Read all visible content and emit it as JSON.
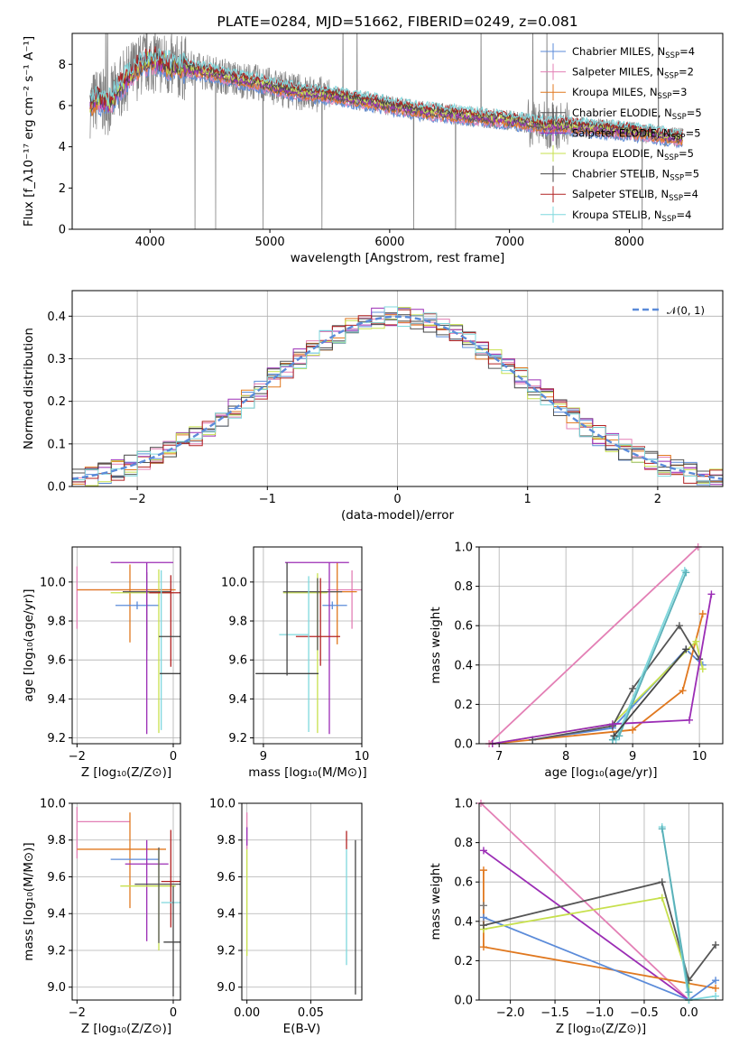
{
  "colors": {
    "chabrier_miles": "#5B8BD9",
    "salpeter_miles": "#E37FB5",
    "kroupa_miles": "#E0781F",
    "chabrier_elodie": "#555555",
    "salpeter_elodie": "#9B2DB5",
    "kroupa_elodie": "#C7E04D",
    "chabrier_stelib": "#444444",
    "salpeter_stelib": "#B22222",
    "kroupa_stelib": "#7FD8DD",
    "spectrum": "#808080"
  },
  "chart_data": [
    {
      "id": "spectrum",
      "type": "line",
      "title": "PLATE=0284, MJD=51662, FIBERID=0249, z=0.081",
      "xlabel": "wavelength [Angstrom, rest frame]",
      "ylabel": "Flux [f_λ10⁻¹⁷ erg cm⁻² s⁻¹ A⁻¹]",
      "xlim": [
        3350,
        8780
      ],
      "ylim": [
        0,
        9.5
      ],
      "xticks": [
        "4000",
        "5000",
        "6000",
        "7000",
        "8000"
      ],
      "yticks": [
        "0",
        "2",
        "4",
        "6",
        "8"
      ],
      "grid": false,
      "legend_position": "top-right",
      "legend": [
        {
          "label": "Chabrier MILES, N",
          "sub": "SSP",
          "suffix": "=4",
          "color": "#5B8BD9"
        },
        {
          "label": "Salpeter MILES, N",
          "sub": "SSP",
          "suffix": "=2",
          "color": "#E37FB5"
        },
        {
          "label": "Kroupa MILES, N",
          "sub": "SSP",
          "suffix": "=3",
          "color": "#E0781F"
        },
        {
          "label": "Chabrier ELODIE, N",
          "sub": "SSP",
          "suffix": "=5",
          "color": "#555555"
        },
        {
          "label": "Salpeter ELODIE, N",
          "sub": "SSP",
          "suffix": "=5",
          "color": "#9B2DB5"
        },
        {
          "label": "Kroupa ELODIE, N",
          "sub": "SSP",
          "suffix": "=5",
          "color": "#C7E04D"
        },
        {
          "label": "Chabrier STELIB, N",
          "sub": "SSP",
          "suffix": "=5",
          "color": "#444444"
        },
        {
          "label": "Salpeter STELIB, N",
          "sub": "SSP",
          "suffix": "=4",
          "color": "#B22222"
        },
        {
          "label": "Kroupa STELIB, N",
          "sub": "SSP",
          "suffix": "=4",
          "color": "#7FD8DD"
        }
      ],
      "continuum": {
        "x": [
          3500,
          3560,
          3650,
          3750,
          3850,
          3950,
          4050,
          4150,
          4300,
          4500,
          4700,
          4900,
          5100,
          5300,
          5500,
          5700,
          5900,
          6100,
          6300,
          6500,
          6700,
          6900,
          7100,
          7200,
          7300,
          7400,
          7500,
          7600,
          7800,
          8000,
          8200,
          8300,
          8450
        ],
        "y": [
          6.0,
          6.3,
          6.1,
          6.9,
          7.6,
          8.1,
          8.2,
          7.9,
          7.8,
          7.6,
          7.3,
          7.1,
          6.8,
          6.6,
          6.5,
          6.3,
          6.1,
          5.9,
          5.7,
          5.6,
          5.45,
          5.35,
          5.2,
          5.1,
          5.0,
          5.05,
          5.0,
          4.95,
          4.85,
          4.75,
          4.6,
          4.5,
          4.4
        ]
      }
    },
    {
      "id": "residuals",
      "type": "histogram",
      "xlabel": "(data-model)/error",
      "ylabel": "Normed distribution",
      "xlim": [
        -2.5,
        2.5
      ],
      "ylim": [
        0,
        0.46
      ],
      "xticks": [
        "−2",
        "−1",
        "0",
        "1",
        "2"
      ],
      "yticks": [
        "0.0",
        "0.1",
        "0.2",
        "0.3",
        "0.4"
      ],
      "grid": true,
      "legend_position": "top-right",
      "legend": [
        {
          "label": "𝒩(0, 1)",
          "color": "#5B8BD9",
          "style": "dashed"
        }
      ],
      "bin_width": 0.1
    },
    {
      "id": "age_vs_Z",
      "type": "errorbar",
      "xlabel": "Z [log₁₀(Z/Z⊙)]",
      "ylabel": "age  [log₁₀(age/yr)]",
      "xlim": [
        -2.1,
        0.15
      ],
      "ylim": [
        9.17,
        10.18
      ],
      "xticks": [
        "−2",
        "0"
      ],
      "yticks": [
        "9.2",
        "9.4",
        "9.6",
        "9.8",
        "10.0"
      ],
      "grid": true,
      "points": [
        {
          "color": "#E37FB5",
          "x": -2.0,
          "xerr": [
            0,
            2.0
          ],
          "y": 9.96,
          "yerr": [
            0.2,
            0.12
          ]
        },
        {
          "color": "#E0781F",
          "x": -0.9,
          "xerr": [
            1.1,
            0.95
          ],
          "y": 9.96,
          "yerr": [
            0.27,
            0.13
          ]
        },
        {
          "color": "#5B8BD9",
          "x": -0.75,
          "xerr": [
            0.45,
            0.45
          ],
          "y": 9.88,
          "yerr": [
            0.02,
            0.02
          ]
        },
        {
          "color": "#C7E04D",
          "x": -0.3,
          "xerr": [
            1.0,
            0.3
          ],
          "y": 9.945,
          "yerr": [
            0.72,
            0.12
          ]
        },
        {
          "color": "#555555",
          "x": -0.55,
          "xerr": [
            0.5,
            0.5
          ],
          "y": 9.95,
          "yerr": [
            0.3,
            0.1
          ]
        },
        {
          "color": "#9B2DB5",
          "x": -0.55,
          "xerr": [
            0.75,
            0.55
          ],
          "y": 10.1,
          "yerr": [
            0.88,
            0.0
          ]
        },
        {
          "color": "#B22222",
          "x": -0.05,
          "xerr": [
            0.45,
            0.45
          ],
          "y": 9.945,
          "yerr": [
            0.38,
            0.09
          ]
        },
        {
          "color": "#7FD8DD",
          "x": -0.25,
          "xerr": [
            0.0,
            0.0
          ],
          "y": 9.74,
          "yerr": [
            0.5,
            0.32
          ]
        },
        {
          "color": "#444444",
          "x": 0.0,
          "xerr": [
            0.3,
            0.3
          ],
          "y": 9.72,
          "yerr": [
            0.0,
            0.0
          ]
        },
        {
          "color": "#444444",
          "x": 0.0,
          "xerr": [
            0.28,
            0.28
          ],
          "y": 9.53,
          "yerr": [
            0.0,
            0.0
          ]
        }
      ]
    },
    {
      "id": "age_vs_mass",
      "type": "errorbar",
      "xlabel": "mass [log₁₀(M/M⊙)]",
      "ylabel": "",
      "xlim": [
        8.9,
        10.0
      ],
      "ylim": [
        9.17,
        10.18
      ],
      "xticks": [
        "9",
        "10"
      ],
      "yticks": [
        "9.2",
        "9.4",
        "9.6",
        "9.8",
        "10.0"
      ],
      "grid": true,
      "points": [
        {
          "color": "#E37FB5",
          "x": 9.9,
          "xerr": [
            0.25,
            0.15
          ],
          "y": 9.96,
          "yerr": [
            0.2,
            0.1
          ]
        },
        {
          "color": "#E0781F",
          "x": 9.75,
          "xerr": [
            0.2,
            0.2
          ],
          "y": 9.95,
          "yerr": [
            0.27,
            0.15
          ]
        },
        {
          "color": "#5B8BD9",
          "x": 9.7,
          "xerr": [
            0.1,
            0.15
          ],
          "y": 9.88,
          "yerr": [
            0.02,
            0.02
          ]
        },
        {
          "color": "#C7E04D",
          "x": 9.55,
          "xerr": [
            0.35,
            0.1
          ],
          "y": 9.945,
          "yerr": [
            0.72,
            0.1
          ]
        },
        {
          "color": "#555555",
          "x": 9.55,
          "xerr": [
            0.35,
            0.25
          ],
          "y": 9.95,
          "yerr": [
            0.3,
            0.07
          ]
        },
        {
          "color": "#9B2DB5",
          "x": 9.67,
          "xerr": [
            0.45,
            0.2
          ],
          "y": 10.1,
          "yerr": [
            0.88,
            0.0
          ]
        },
        {
          "color": "#B22222",
          "x": 9.58,
          "xerr": [
            0.25,
            0.2
          ],
          "y": 9.72,
          "yerr": [
            0.15,
            0.3
          ]
        },
        {
          "color": "#7FD8DD",
          "x": 9.46,
          "xerr": [
            0.3,
            0.0
          ],
          "y": 9.73,
          "yerr": [
            0.5,
            0.3
          ]
        },
        {
          "color": "#444444",
          "x": 9.24,
          "xerr": [
            0.32,
            0.32
          ],
          "y": 9.53,
          "yerr": [
            0.0,
            0.0
          ]
        },
        {
          "color": "#444444",
          "x": 9.24,
          "xerr": [
            0.0,
            0.0
          ],
          "y": 9.8,
          "yerr": [
            0.28,
            0.3
          ]
        }
      ]
    },
    {
      "id": "massweight_vs_age",
      "type": "line",
      "xlabel": "age  [log₁₀(age/yr)]",
      "ylabel": "mass weight",
      "xlim": [
        6.7,
        10.35
      ],
      "ylim": [
        0,
        1.0
      ],
      "xticks": [
        "7",
        "8",
        "9",
        "10"
      ],
      "yticks": [
        "0.0",
        "0.2",
        "0.4",
        "0.6",
        "0.8",
        "1.0"
      ],
      "grid": true,
      "series": [
        {
          "color": "#E37FB5",
          "x": [
            6.85,
            9.98
          ],
          "y": [
            0.0,
            1.0
          ]
        },
        {
          "color": "#5B8BD9",
          "x": [
            7.5,
            8.7,
            9.8,
            10.05
          ],
          "y": [
            0.02,
            0.08,
            0.48,
            0.4
          ]
        },
        {
          "color": "#E0781F",
          "x": [
            6.9,
            9.0,
            9.75,
            10.05
          ],
          "y": [
            0.0,
            0.07,
            0.27,
            0.66
          ]
        },
        {
          "color": "#C7E04D",
          "x": [
            6.9,
            8.7,
            9.95,
            10.05
          ],
          "y": [
            0.0,
            0.1,
            0.52,
            0.38
          ]
        },
        {
          "color": "#555555",
          "x": [
            7.5,
            8.7,
            9.0,
            9.7,
            10.0
          ],
          "y": [
            0.02,
            0.09,
            0.28,
            0.6,
            0.43
          ]
        },
        {
          "color": "#9B2DB5",
          "x": [
            6.9,
            8.7,
            9.85,
            10.18
          ],
          "y": [
            0.0,
            0.1,
            0.12,
            0.76
          ]
        },
        {
          "color": "#7FD8DD",
          "x": [
            8.7,
            8.75,
            9.78
          ],
          "y": [
            0.02,
            0.02,
            0.88
          ]
        },
        {
          "color": "#5AB0B8",
          "x": [
            8.7,
            8.8,
            9.8
          ],
          "y": [
            0.02,
            0.04,
            0.87
          ]
        },
        {
          "color": "#444444",
          "x": [
            8.72,
            9.8
          ],
          "y": [
            0.04,
            0.48
          ]
        }
      ]
    },
    {
      "id": "mass_vs_Z",
      "type": "errorbar",
      "xlabel": "Z [log₁₀(Z/Z⊙)]",
      "ylabel": "mass [log₁₀(M/M⊙)]",
      "xlim": [
        -2.1,
        0.15
      ],
      "ylim": [
        8.93,
        10.0
      ],
      "xticks": [
        "−2",
        "0"
      ],
      "yticks": [
        "9.0",
        "9.2",
        "9.4",
        "9.6",
        "9.8",
        "10.0"
      ],
      "grid": true,
      "points": [
        {
          "color": "#E37FB5",
          "x": -2.0,
          "xerr": [
            0,
            1.1
          ],
          "y": 9.9,
          "yerr": [
            0.2,
            0.08
          ]
        },
        {
          "color": "#E0781F",
          "x": -0.9,
          "xerr": [
            1.1,
            0.75
          ],
          "y": 9.75,
          "yerr": [
            0.32,
            0.2
          ]
        },
        {
          "color": "#5B8BD9",
          "x": -0.8,
          "xerr": [
            0.5,
            0.5
          ],
          "y": 9.695,
          "yerr": [
            0.0,
            0.0
          ]
        },
        {
          "color": "#9B2DB5",
          "x": -0.55,
          "xerr": [
            0.45,
            0.45
          ],
          "y": 9.67,
          "yerr": [
            0.42,
            0.13
          ]
        },
        {
          "color": "#C7E04D",
          "x": -0.3,
          "xerr": [
            0.8,
            0.35
          ],
          "y": 9.55,
          "yerr": [
            0.35,
            0.2
          ]
        },
        {
          "color": "#555555",
          "x": -0.3,
          "xerr": [
            0.5,
            0.5
          ],
          "y": 9.56,
          "yerr": [
            0.32,
            0.2
          ]
        },
        {
          "color": "#B22222",
          "x": -0.05,
          "xerr": [
            0.2,
            0.2
          ],
          "y": 9.575,
          "yerr": [
            0.25,
            0.28
          ]
        },
        {
          "color": "#7FD8DD",
          "x": 0.0,
          "xerr": [
            0.25,
            0.2
          ],
          "y": 9.46,
          "yerr": [
            0.0,
            0.0
          ]
        },
        {
          "color": "#444444",
          "x": 0.0,
          "xerr": [
            0.2,
            0.2
          ],
          "y": 9.245,
          "yerr": [
            0.0,
            0.0
          ]
        },
        {
          "color": "#444444",
          "x": 0.0,
          "xerr": [
            0.0,
            0.0
          ],
          "y": 9.55,
          "yerr": [
            0.6,
            0.0
          ]
        }
      ]
    },
    {
      "id": "mass_vs_ebv",
      "type": "errorbar",
      "xlabel": "E(B-V)",
      "ylabel": "",
      "xlim": [
        -0.004,
        0.09
      ],
      "ylim": [
        8.93,
        10.0
      ],
      "xticks": [
        "0.00",
        "0.05"
      ],
      "yticks": [
        "9.0",
        "9.2",
        "9.4",
        "9.6",
        "9.8",
        "10.0"
      ],
      "grid": true,
      "points": [
        {
          "color": "#E37FB5",
          "x": 0.0,
          "xerr": [
            0,
            0
          ],
          "y": 9.85,
          "yerr": [
            0.1,
            0.1
          ]
        },
        {
          "color": "#9B2DB5",
          "x": 0.0,
          "xerr": [
            0,
            0
          ],
          "y": 9.82,
          "yerr": [
            0.05,
            0.05
          ]
        },
        {
          "color": "#C7E04D",
          "x": 0.0,
          "xerr": [
            0,
            0
          ],
          "y": 9.55,
          "yerr": [
            0.38,
            0.2
          ]
        },
        {
          "color": "#B22222",
          "x": 0.078,
          "xerr": [
            0,
            0
          ],
          "y": 9.8,
          "yerr": [
            0.05,
            0.05
          ]
        },
        {
          "color": "#7FD8DD",
          "x": 0.078,
          "xerr": [
            0,
            0
          ],
          "y": 9.45,
          "yerr": [
            0.33,
            0.3
          ]
        },
        {
          "color": "#444444",
          "x": 0.085,
          "xerr": [
            0,
            0
          ],
          "y": 9.4,
          "yerr": [
            0.44,
            0.4
          ]
        }
      ]
    },
    {
      "id": "massweight_vs_Z",
      "type": "line",
      "xlabel": "Z [log₁₀(Z/Z⊙)]",
      "ylabel": "mass weight",
      "xlim": [
        -2.35,
        0.38
      ],
      "ylim": [
        0,
        1.0
      ],
      "xticks": [
        "−2.0",
        "−1.5",
        "−1.0",
        "−0.5",
        "0.0"
      ],
      "yticks": [
        "0.0",
        "0.2",
        "0.4",
        "0.6",
        "0.8",
        "1.0"
      ],
      "grid": true,
      "series": [
        {
          "color": "#E37FB5",
          "x": [
            -2.33,
            0.0
          ],
          "y": [
            1.0,
            0.0
          ]
        },
        {
          "color": "#9B2DB5",
          "x": [
            -2.3,
            0.0
          ],
          "y": [
            0.76,
            0.0
          ]
        },
        {
          "color": "#E0781F",
          "x": [
            -2.3,
            -2.3,
            0.3
          ],
          "y": [
            0.66,
            0.27,
            0.06
          ]
        },
        {
          "color": "#5B8BD9",
          "x": [
            -2.3,
            0.0,
            0.3
          ],
          "y": [
            0.42,
            0.0,
            0.1
          ]
        },
        {
          "color": "#C7E04D",
          "x": [
            -2.3,
            -0.3,
            0.0,
            0.0
          ],
          "y": [
            0.36,
            0.52,
            0.1,
            0.0
          ]
        },
        {
          "color": "#555555",
          "x": [
            -2.3,
            -0.3,
            0.0,
            0.3
          ],
          "y": [
            0.38,
            0.6,
            0.1,
            0.28
          ]
        },
        {
          "color": "#7FD8DD",
          "x": [
            -0.3,
            0.0,
            0.3
          ],
          "y": [
            0.88,
            0.0,
            0.02
          ]
        },
        {
          "color": "#5AB0B8",
          "x": [
            -0.3,
            0.0
          ],
          "y": [
            0.87,
            0.04
          ]
        },
        {
          "color": "#7A7A7A",
          "x": [
            -2.3
          ],
          "y": [
            0.48
          ]
        }
      ]
    }
  ]
}
